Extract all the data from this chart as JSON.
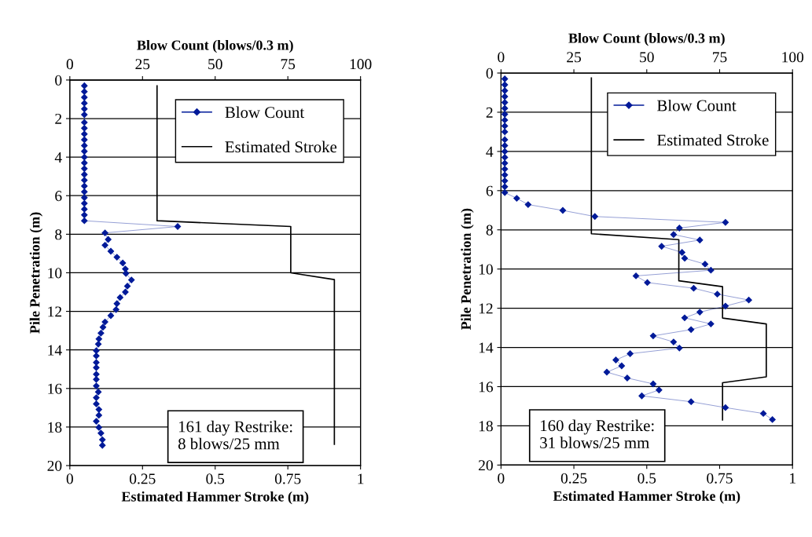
{
  "chart_data": [
    {
      "type": "line",
      "xlabel": "Estimated Hammer Stroke (m)",
      "x2label": "Blow Count (blows/0.3 m)",
      "ylabel": "Pile Penetration (m)",
      "xlim": [
        0,
        1
      ],
      "xticks": [
        0,
        0.25,
        0.5,
        0.75,
        1
      ],
      "x2lim": [
        0,
        100
      ],
      "x2ticks": [
        0,
        25,
        50,
        75,
        100
      ],
      "ylim": [
        20,
        0
      ],
      "yticks": [
        0,
        2,
        4,
        6,
        8,
        10,
        12,
        14,
        16,
        18,
        20
      ],
      "grid": "y",
      "legend": "top right",
      "annotations": [
        "161 day Restrike:\n8 blows/25 mm"
      ],
      "series": [
        {
          "name": "Blow Count",
          "color": "#001a99",
          "axis": "x2",
          "marker": "diamond",
          "x": [
            5,
            5,
            5,
            5,
            5,
            5,
            5,
            5,
            5,
            5,
            5,
            5,
            5,
            5,
            5,
            5,
            5,
            5,
            5,
            5,
            5,
            5,
            5,
            5,
            37.1,
            12.1,
            13.2,
            12.1,
            14.1,
            16.2,
            18.2,
            19.1,
            19.3,
            21.2,
            19.8,
            19.1,
            17.3,
            16.2,
            15.9,
            14.1,
            12.1,
            11.4,
            10.7,
            10.0,
            9.8,
            9.1,
            9.1,
            9.1,
            9.1,
            9.1,
            9.1,
            9.1,
            9.8,
            9.1,
            9.1,
            10.0,
            10.0,
            9.1,
            10.0,
            10.7,
            11.2,
            11.2
          ],
          "values": [
            0.3,
            0.6,
            0.9,
            1.2,
            1.5,
            1.8,
            2.2,
            2.5,
            2.8,
            3.1,
            3.4,
            3.7,
            4.0,
            4.3,
            4.6,
            4.9,
            5.2,
            5.5,
            5.8,
            6.1,
            6.4,
            6.7,
            7.0,
            7.3,
            7.6,
            7.93,
            8.27,
            8.57,
            8.88,
            9.19,
            9.49,
            9.8,
            10.03,
            10.37,
            10.69,
            11.0,
            11.28,
            11.6,
            11.91,
            12.22,
            12.55,
            12.82,
            13.13,
            13.43,
            13.7,
            14.04,
            14.31,
            14.65,
            14.92,
            15.26,
            15.53,
            15.87,
            16.18,
            16.48,
            16.8,
            17.09,
            17.39,
            17.7,
            18.02,
            18.32,
            18.66,
            18.95
          ]
        },
        {
          "name": "Estimated Stroke",
          "color": "#000000",
          "marker": "none",
          "x": [
            0.3,
            0.3,
            0.76,
            0.76,
            0.91,
            0.91
          ],
          "values": [
            0.3,
            7.3,
            7.6,
            10.0,
            10.35,
            18.9
          ]
        }
      ]
    },
    {
      "type": "line",
      "xlabel": "Estimated Hammer Stroke (m)",
      "x2label": "Blow Count (blows/0.3 m)",
      "ylabel": "Pile Penetration (m)",
      "xlim": [
        0,
        1
      ],
      "xticks": [
        0,
        0.25,
        0.5,
        0.75,
        1
      ],
      "x2lim": [
        0,
        100
      ],
      "x2ticks": [
        0,
        25,
        50,
        75,
        100
      ],
      "ylim": [
        20,
        0
      ],
      "yticks": [
        0,
        2,
        4,
        6,
        8,
        10,
        12,
        14,
        16,
        18,
        20
      ],
      "grid": "y",
      "legend": "top right",
      "annotations": [
        "160 day Restrike:\n31 blows/25 mm"
      ],
      "series": [
        {
          "name": "Blow Count",
          "color": "#001a99",
          "axis": "x2",
          "marker": "diamond",
          "x": [
            1.3,
            1.3,
            1.3,
            1.3,
            1.3,
            1.3,
            1.3,
            1.3,
            1.3,
            1.3,
            1.3,
            1.3,
            1.3,
            1.3,
            1.3,
            1.3,
            1.3,
            1.3,
            1.3,
            1.3,
            5.4,
            9.3,
            21.2,
            32.2,
            77.0,
            61.2,
            59.2,
            68.2,
            55.1,
            62.1,
            63.0,
            70.0,
            72.0,
            46.3,
            50.2,
            66.1,
            74.2,
            85.0,
            77.0,
            68.2,
            63.0,
            72.0,
            65.2,
            52.2,
            59.2,
            61.2,
            44.3,
            39.4,
            41.4,
            36.3,
            43.3,
            52.2,
            54.2,
            48.3,
            65.2,
            77.0,
            90.0,
            93.1
          ],
          "values": [
            0.3,
            0.6,
            0.9,
            1.2,
            1.5,
            1.8,
            2.1,
            2.4,
            2.7,
            3.0,
            3.4,
            3.7,
            4.0,
            4.3,
            4.6,
            4.9,
            5.2,
            5.5,
            5.8,
            6.1,
            6.39,
            6.71,
            7.01,
            7.32,
            7.62,
            7.91,
            8.24,
            8.52,
            8.84,
            9.15,
            9.45,
            9.75,
            10.06,
            10.35,
            10.69,
            10.98,
            11.28,
            11.58,
            11.89,
            12.2,
            12.49,
            12.8,
            13.09,
            13.41,
            13.72,
            14.03,
            14.32,
            14.64,
            14.94,
            15.26,
            15.56,
            15.86,
            16.17,
            16.47,
            16.77,
            17.07,
            17.37,
            17.68
          ]
        },
        {
          "name": "Estimated Stroke",
          "color": "#000000",
          "marker": "none",
          "x": [
            0.31,
            0.31,
            0.61,
            0.61,
            0.76,
            0.76,
            0.91,
            0.91,
            0.76,
            0.76
          ],
          "values": [
            0.25,
            8.2,
            8.5,
            10.6,
            10.9,
            12.5,
            12.8,
            15.5,
            15.8,
            17.7
          ]
        }
      ]
    }
  ]
}
